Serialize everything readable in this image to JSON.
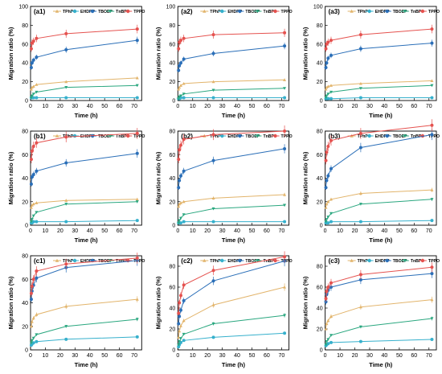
{
  "chart_data": [
    {
      "label": "(a1)",
      "type": "line",
      "xlabel": "Time (h)",
      "ylabel": "Migration ratio (%)",
      "xlim": [
        0,
        75
      ],
      "ylim": [
        0,
        100
      ],
      "x_ticks": [
        0,
        10,
        20,
        30,
        40,
        50,
        60,
        70
      ],
      "y_ticks": [
        0,
        20,
        40,
        60,
        80,
        100
      ],
      "legend": "top",
      "x": [
        0.5,
        1,
        2,
        4,
        24,
        72
      ],
      "series": [
        {
          "name": "TPhP",
          "values": [
            12,
            14,
            15,
            17,
            20,
            24
          ]
        },
        {
          "name": "EHDPP",
          "values": [
            3,
            3,
            3,
            3,
            3,
            3
          ]
        },
        {
          "name": "TBOEP",
          "values": [
            35,
            40,
            43,
            46,
            54,
            64
          ]
        },
        {
          "name": "TnBP",
          "values": [
            3,
            5,
            7,
            9,
            14,
            16
          ]
        },
        {
          "name": "TPPO",
          "values": [
            55,
            61,
            63,
            66,
            71,
            76
          ]
        }
      ]
    },
    {
      "label": "(a2)",
      "type": "line",
      "xlabel": "Time (h)",
      "ylabel": "Migration ratio (%)",
      "xlim": [
        0,
        75
      ],
      "ylim": [
        0,
        100
      ],
      "x_ticks": [
        0,
        10,
        20,
        30,
        40,
        50,
        60,
        70
      ],
      "y_ticks": [
        0,
        20,
        40,
        60,
        80,
        100
      ],
      "legend": "top",
      "x": [
        0.5,
        1,
        2,
        4,
        24,
        72
      ],
      "series": [
        {
          "name": "TPhP",
          "values": [
            12,
            14,
            16,
            18,
            20,
            22
          ]
        },
        {
          "name": "EHDPP",
          "values": [
            2,
            2,
            3,
            3,
            3,
            3
          ]
        },
        {
          "name": "TBOEP",
          "values": [
            32,
            37,
            40,
            44,
            50,
            58
          ]
        },
        {
          "name": "TnBP",
          "values": [
            2,
            4,
            5,
            7,
            11,
            13
          ]
        },
        {
          "name": "TPPO",
          "values": [
            55,
            62,
            64,
            66,
            70,
            72
          ]
        }
      ]
    },
    {
      "label": "(a3)",
      "type": "line",
      "xlabel": "Time (h)",
      "ylabel": "Migration ratio (%)",
      "xlim": [
        0,
        75
      ],
      "ylim": [
        0,
        100
      ],
      "x_ticks": [
        0,
        10,
        20,
        30,
        40,
        50,
        60,
        70
      ],
      "y_ticks": [
        0,
        20,
        40,
        60,
        80,
        100
      ],
      "legend": "top",
      "x": [
        0.5,
        1,
        2,
        4,
        24,
        72
      ],
      "series": [
        {
          "name": "TPhP",
          "values": [
            12,
            14,
            15,
            16,
            18,
            21
          ]
        },
        {
          "name": "EHDPP",
          "values": [
            2,
            2,
            2,
            2,
            3,
            3
          ]
        },
        {
          "name": "TBOEP",
          "values": [
            35,
            40,
            45,
            48,
            55,
            61
          ]
        },
        {
          "name": "TnBP",
          "values": [
            3,
            5,
            7,
            9,
            13,
            16
          ]
        },
        {
          "name": "TPPO",
          "values": [
            55,
            60,
            62,
            64,
            70,
            76
          ]
        }
      ]
    },
    {
      "label": "(b1)",
      "type": "line",
      "xlabel": "Time (h)",
      "ylabel": "Migration ratio (%)",
      "xlim": [
        0,
        75
      ],
      "ylim": [
        0,
        80
      ],
      "x_ticks": [
        0,
        10,
        20,
        30,
        40,
        50,
        60,
        70
      ],
      "y_ticks": [
        0,
        20,
        40,
        60,
        80
      ],
      "legend": "top",
      "x": [
        0.5,
        1,
        2,
        4,
        24,
        72
      ],
      "series": [
        {
          "name": "TPhP",
          "values": [
            15,
            17,
            18,
            19,
            21,
            22
          ]
        },
        {
          "name": "EHDPP",
          "values": [
            2,
            2,
            3,
            3,
            3,
            4
          ]
        },
        {
          "name": "TBOEP",
          "values": [
            35,
            41,
            43,
            46,
            53,
            61
          ]
        },
        {
          "name": "TnBP",
          "values": [
            3,
            5,
            8,
            11,
            18,
            20
          ]
        },
        {
          "name": "TPPO",
          "values": [
            56,
            63,
            67,
            70,
            75,
            78
          ]
        }
      ]
    },
    {
      "label": "(b2)",
      "type": "line",
      "xlabel": "Time (h)",
      "ylabel": "Migration ratio (%)",
      "xlim": [
        0,
        75
      ],
      "ylim": [
        0,
        80
      ],
      "x_ticks": [
        0,
        10,
        20,
        30,
        40,
        50,
        60,
        70
      ],
      "y_ticks": [
        0,
        20,
        40,
        60,
        80
      ],
      "legend": "top",
      "x": [
        0.5,
        1,
        2,
        4,
        24,
        72
      ],
      "series": [
        {
          "name": "TPhP",
          "values": [
            16,
            18,
            19,
            20,
            23,
            26
          ]
        },
        {
          "name": "EHDPP",
          "values": [
            2,
            2,
            2,
            3,
            3,
            3
          ]
        },
        {
          "name": "TBOEP",
          "values": [
            32,
            38,
            42,
            46,
            55,
            65
          ]
        },
        {
          "name": "TnBP",
          "values": [
            2,
            4,
            6,
            9,
            14,
            17
          ]
        },
        {
          "name": "TPPO",
          "values": [
            56,
            64,
            68,
            73,
            77,
            80
          ]
        }
      ]
    },
    {
      "label": "(b3)",
      "type": "line",
      "xlabel": "Time (h)",
      "ylabel": "Migration ratio (%)",
      "xlim": [
        0,
        75
      ],
      "ylim": [
        0,
        80
      ],
      "x_ticks": [
        0,
        10,
        20,
        30,
        40,
        50,
        60,
        70
      ],
      "y_ticks": [
        0,
        20,
        40,
        60,
        80
      ],
      "legend": "top",
      "x": [
        0.5,
        1,
        2,
        4,
        24,
        72
      ],
      "series": [
        {
          "name": "TPhP",
          "values": [
            15,
            18,
            20,
            22,
            27,
            30
          ]
        },
        {
          "name": "EHDPP",
          "values": [
            2,
            2,
            2,
            3,
            3,
            4
          ]
        },
        {
          "name": "TBOEP",
          "values": [
            32,
            38,
            42,
            48,
            66,
            77
          ]
        },
        {
          "name": "TnBP",
          "values": [
            3,
            5,
            7,
            10,
            18,
            22
          ]
        },
        {
          "name": "TPPO",
          "values": [
            55,
            62,
            67,
            72,
            78,
            85
          ]
        }
      ]
    },
    {
      "label": "(c1)",
      "type": "line",
      "xlabel": "Time (h)",
      "ylabel": "Migration ratio (%)",
      "xlim": [
        0,
        75
      ],
      "ylim": [
        0,
        80
      ],
      "x_ticks": [
        0,
        10,
        20,
        30,
        40,
        50,
        60,
        70
      ],
      "y_ticks": [
        0,
        20,
        40,
        60,
        80
      ],
      "legend": "top",
      "x": [
        0.5,
        1,
        2,
        4,
        24,
        72
      ],
      "series": [
        {
          "name": "TPhP",
          "values": [
            20,
            24,
            27,
            30,
            37,
            43
          ]
        },
        {
          "name": "EHDPP",
          "values": [
            4,
            5,
            6,
            7,
            9,
            11
          ]
        },
        {
          "name": "TBOEP",
          "values": [
            43,
            50,
            55,
            61,
            70,
            76
          ]
        },
        {
          "name": "TnBP",
          "values": [
            6,
            8,
            10,
            13,
            20,
            26
          ]
        },
        {
          "name": "TPPO",
          "values": [
            48,
            54,
            60,
            67,
            73,
            78
          ]
        }
      ]
    },
    {
      "label": "(c2)",
      "type": "line",
      "xlabel": "Time (h)",
      "ylabel": "Migration ratio (%)",
      "xlim": [
        0,
        75
      ],
      "ylim": [
        0,
        90
      ],
      "x_ticks": [
        0,
        10,
        20,
        30,
        40,
        50,
        60,
        70
      ],
      "y_ticks": [
        0,
        20,
        40,
        60,
        80
      ],
      "legend": "top",
      "x": [
        0.5,
        1,
        2,
        4,
        24,
        72
      ],
      "series": [
        {
          "name": "TPhP",
          "values": [
            12,
            18,
            23,
            28,
            43,
            60
          ]
        },
        {
          "name": "EHDPP",
          "values": [
            3,
            5,
            7,
            9,
            12,
            16
          ]
        },
        {
          "name": "TBOEP",
          "values": [
            25,
            32,
            38,
            47,
            66,
            85
          ]
        },
        {
          "name": "TnBP",
          "values": [
            5,
            8,
            11,
            15,
            25,
            33
          ]
        },
        {
          "name": "TPPO",
          "values": [
            35,
            45,
            52,
            62,
            76,
            89
          ]
        }
      ]
    },
    {
      "label": "(c3)",
      "type": "line",
      "xlabel": "Time (h)",
      "ylabel": "Migration ratio (%)",
      "xlim": [
        0,
        75
      ],
      "ylim": [
        0,
        90
      ],
      "x_ticks": [
        0,
        10,
        20,
        30,
        40,
        50,
        60,
        70
      ],
      "y_ticks": [
        0,
        20,
        40,
        60,
        80
      ],
      "legend": "top",
      "x": [
        0.5,
        1,
        2,
        4,
        24,
        72
      ],
      "series": [
        {
          "name": "TPhP",
          "values": [
            20,
            25,
            28,
            32,
            41,
            48
          ]
        },
        {
          "name": "EHDPP",
          "values": [
            4,
            5,
            6,
            7,
            8,
            10
          ]
        },
        {
          "name": "TBOEP",
          "values": [
            46,
            53,
            57,
            60,
            67,
            73
          ]
        },
        {
          "name": "TnBP",
          "values": [
            5,
            8,
            10,
            14,
            22,
            30
          ]
        },
        {
          "name": "TPPO",
          "values": [
            49,
            56,
            60,
            64,
            72,
            79
          ]
        }
      ]
    }
  ],
  "colors": {
    "TPhP": "#e2b46b",
    "EHDPP": "#36b0cc",
    "TBOEP": "#2b6fb8",
    "TnBP": "#2aa77f",
    "TPPO": "#e5524f"
  }
}
